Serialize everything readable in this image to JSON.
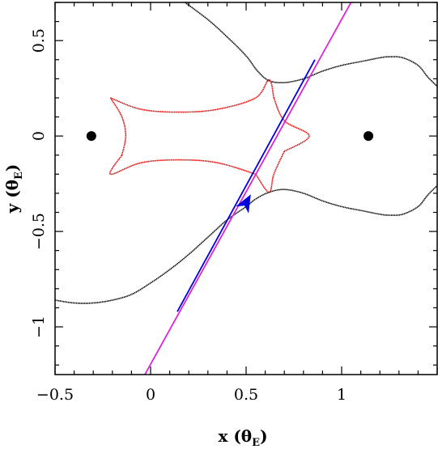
{
  "chart_data": {
    "type": "line",
    "xlabel": {
      "main": "x (θ",
      "sub": "E",
      "close": ")"
    },
    "ylabel": {
      "main": "y (θ",
      "sub": "E",
      "close": ")"
    },
    "xlim": [
      -0.5,
      1.5
    ],
    "ylim": [
      -1.25,
      0.7
    ],
    "xticks": [
      -0.5,
      0,
      0.5,
      1
    ],
    "xtick_labels": [
      "−0.5",
      "0",
      "0.5",
      "1"
    ],
    "yticks": [
      -1,
      -0.5,
      0,
      0.5
    ],
    "ytick_labels": [
      "−1",
      "−0.5",
      "0",
      "0.5"
    ],
    "lens_positions": [
      {
        "x": -0.31,
        "y": 0
      },
      {
        "x": 1.14,
        "y": 0
      }
    ],
    "critical_curve_upper": [
      [
        0.18,
        0.7
      ],
      [
        0.3,
        0.61
      ],
      [
        0.4,
        0.52
      ],
      [
        0.5,
        0.42
      ],
      [
        0.56,
        0.34
      ],
      [
        0.62,
        0.29
      ],
      [
        0.7,
        0.28
      ],
      [
        0.8,
        0.3
      ],
      [
        0.9,
        0.34
      ],
      [
        1.0,
        0.37
      ],
      [
        1.1,
        0.39
      ],
      [
        1.2,
        0.41
      ],
      [
        1.25,
        0.415
      ],
      [
        1.32,
        0.41
      ],
      [
        1.4,
        0.37
      ],
      [
        1.45,
        0.31
      ],
      [
        1.5,
        0.26
      ]
    ],
    "critical_curve_lower": [
      [
        -0.5,
        -0.86
      ],
      [
        -0.4,
        -0.875
      ],
      [
        -0.3,
        -0.875
      ],
      [
        -0.2,
        -0.86
      ],
      [
        -0.1,
        -0.83
      ],
      [
        0.0,
        -0.77
      ],
      [
        0.1,
        -0.7
      ],
      [
        0.2,
        -0.62
      ],
      [
        0.3,
        -0.53
      ],
      [
        0.4,
        -0.44
      ],
      [
        0.5,
        -0.37
      ],
      [
        0.55,
        -0.33
      ],
      [
        0.62,
        -0.295
      ],
      [
        0.7,
        -0.28
      ],
      [
        0.8,
        -0.3
      ],
      [
        0.9,
        -0.34
      ],
      [
        1.0,
        -0.37
      ],
      [
        1.1,
        -0.39
      ],
      [
        1.2,
        -0.41
      ],
      [
        1.25,
        -0.415
      ],
      [
        1.32,
        -0.41
      ],
      [
        1.4,
        -0.37
      ],
      [
        1.45,
        -0.31
      ],
      [
        1.5,
        -0.26
      ]
    ],
    "caustic": [
      [
        -0.21,
        0.2
      ],
      [
        -0.05,
        0.14
      ],
      [
        0.15,
        0.125
      ],
      [
        0.35,
        0.14
      ],
      [
        0.55,
        0.2
      ],
      [
        0.62,
        0.295
      ],
      [
        0.645,
        0.2
      ],
      [
        0.7,
        0.08
      ],
      [
        0.83,
        0.0
      ],
      [
        0.7,
        -0.08
      ],
      [
        0.645,
        -0.2
      ],
      [
        0.62,
        -0.295
      ],
      [
        0.55,
        -0.2
      ],
      [
        0.35,
        -0.14
      ],
      [
        0.15,
        -0.125
      ],
      [
        -0.05,
        -0.14
      ],
      [
        -0.21,
        -0.2
      ],
      [
        -0.15,
        -0.1
      ],
      [
        -0.13,
        0.0
      ],
      [
        -0.15,
        0.1
      ],
      [
        -0.21,
        0.2
      ]
    ],
    "source_trajectory": {
      "start": [
        -0.03,
        -1.25
      ],
      "end": [
        1.06,
        0.72
      ],
      "blue_from": [
        0.14,
        -0.92
      ],
      "blue_to": [
        0.86,
        0.4
      ],
      "arrow_at": [
        0.5,
        -0.35
      ]
    },
    "colors": {
      "critical_curve": "#000000",
      "caustic": "#e01010",
      "trajectory": "#dd22dd",
      "trajectory_highlight": "#0000dd",
      "lens": "#000000"
    }
  }
}
